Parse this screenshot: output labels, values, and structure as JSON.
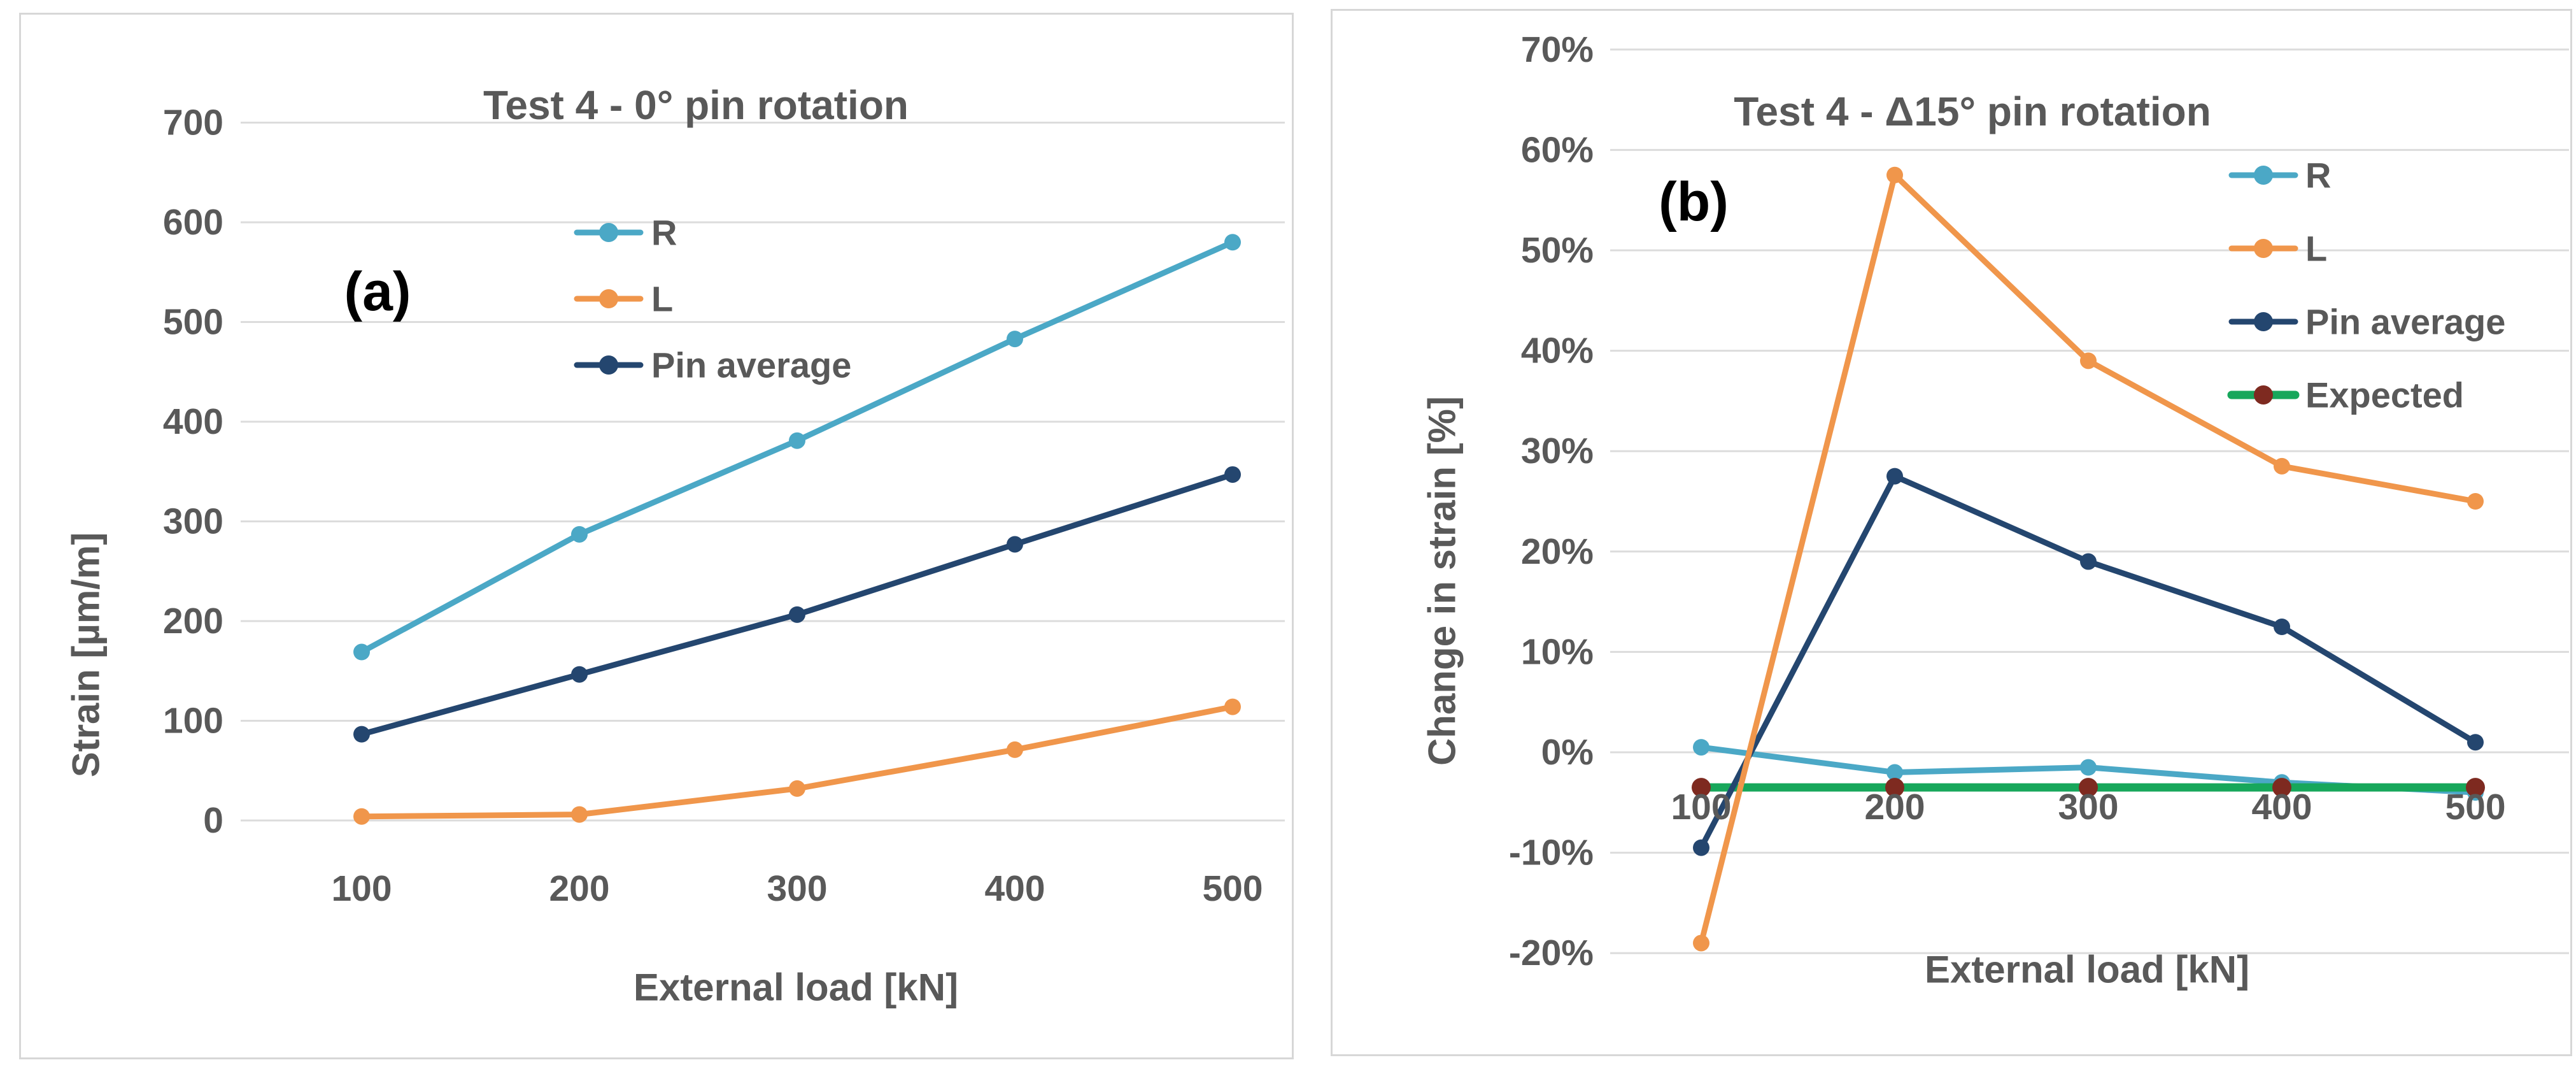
{
  "page": {
    "background": "#ffffff",
    "grid_color": "#dcdcdc",
    "border_color": "#d7d7d7",
    "text_color": "#595959",
    "panel_letter_color": "#000000"
  },
  "chart_data": [
    {
      "type": "line",
      "panel_label": "(a)",
      "title": "Test 4 - 0° pin rotation",
      "xlabel": "External load [kN]",
      "ylabel": "Strain [µm/m]",
      "x": [
        100,
        200,
        300,
        400,
        500
      ],
      "xtick_labels": [
        "100",
        "200",
        "300",
        "400",
        "500"
      ],
      "ylim": [
        0,
        700
      ],
      "ytick_step": 100,
      "ytick_labels": [
        "0",
        "100",
        "200",
        "300",
        "400",
        "500",
        "600",
        "700"
      ],
      "grid": true,
      "legend_position": "upper-middle-inside",
      "series": [
        {
          "name": "R",
          "color": "#4BA8C6",
          "marker_color": "#4BA8C6",
          "values": [
            169,
            287,
            381,
            483,
            580
          ]
        },
        {
          "name": "L",
          "color": "#F0964B",
          "marker_color": "#F0964B",
          "values": [
            4,
            6,
            32,
            71,
            114
          ]
        },
        {
          "name": "Pin average",
          "color": "#24466F",
          "marker_color": "#24466F",
          "values": [
            86.5,
            146.5,
            206.5,
            277,
            347
          ]
        }
      ],
      "legend": [
        "R",
        "L",
        "Pin average"
      ]
    },
    {
      "type": "line",
      "panel_label": "(b)",
      "title": "Test 4 - Δ15° pin rotation",
      "xlabel": "External load [kN]",
      "ylabel": "Change in strain [%]",
      "x": [
        100,
        200,
        300,
        400,
        500
      ],
      "xtick_labels": [
        "100",
        "200",
        "300",
        "400",
        "500"
      ],
      "ylim": [
        -20,
        70
      ],
      "ytick_step": 10,
      "ytick_labels": [
        "-20%",
        "-10%",
        "0%",
        "10%",
        "20%",
        "30%",
        "40%",
        "50%",
        "60%",
        "70%"
      ],
      "grid": true,
      "legend_position": "upper-right-inside",
      "series": [
        {
          "name": "R",
          "color": "#4BA8C6",
          "marker_color": "#4BA8C6",
          "values": [
            0.5,
            -2,
            -1.5,
            -3,
            -4
          ]
        },
        {
          "name": "Expected",
          "color": "#17A75B",
          "marker_color": "#7E2A20",
          "values": [
            -3.5,
            -3.5,
            -3.5,
            -3.5,
            -3.5
          ]
        },
        {
          "name": "Pin average",
          "color": "#24466F",
          "marker_color": "#24466F",
          "values": [
            -9.5,
            27.5,
            19,
            12.5,
            1
          ]
        },
        {
          "name": "L",
          "color": "#F0964B",
          "marker_color": "#F0964B",
          "values": [
            -19,
            57.5,
            39,
            28.5,
            25
          ]
        }
      ],
      "legend": [
        "R",
        "L",
        "Pin average",
        "Expected"
      ]
    }
  ]
}
